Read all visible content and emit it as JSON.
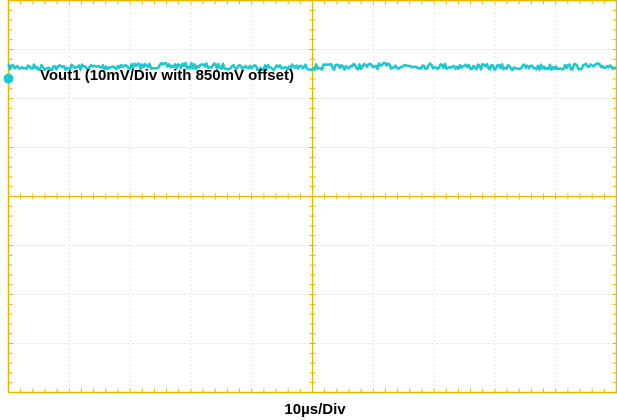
{
  "chart_data": {
    "type": "line",
    "title": "",
    "annotation": "Vout1 (10mV/Div with 850mV offset)",
    "xlabel": "10µs/Div",
    "ylabel": "",
    "x_divisions": 10,
    "y_divisions": 8,
    "grid": true,
    "frame_color": "#E6B800",
    "grid_color": "#BFBFBF",
    "series": [
      {
        "color": "#1FC8CF",
        "trace": "nearly flat noisy trace",
        "level_divisions_from_top": 1.35,
        "noise_peak_to_peak_divisions": 0.12
      }
    ]
  }
}
